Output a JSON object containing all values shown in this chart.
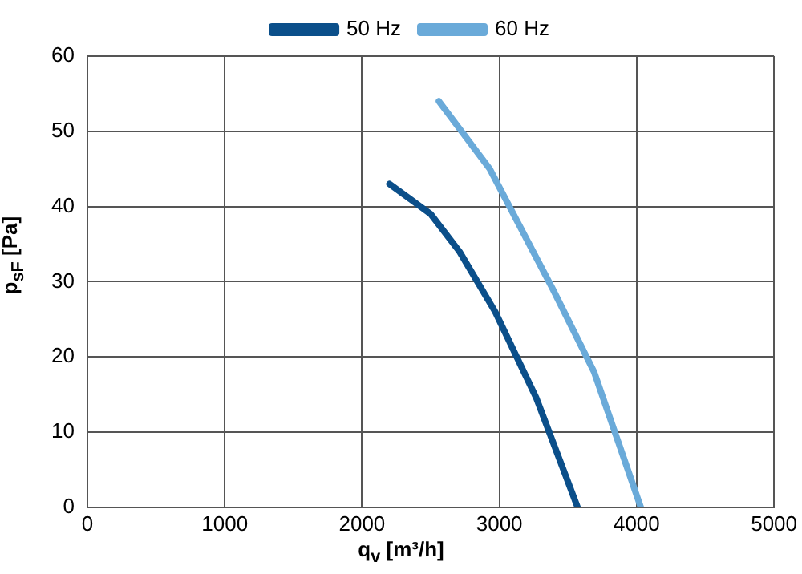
{
  "chart_data": {
    "type": "line",
    "xlabel": "q$_{v}$ [m³/h]",
    "ylabel": "p$_{sF}$ [Pa]",
    "xlim": [
      0,
      5000
    ],
    "xticks": [
      0,
      1000,
      2000,
      3000,
      4000,
      5000
    ],
    "ylim": [
      0,
      60
    ],
    "yticks": [
      0,
      10,
      20,
      30,
      40,
      50,
      60
    ],
    "grid": true,
    "legend": "top",
    "marker": "none",
    "line_style": "solid",
    "series": [
      {
        "name": "50 Hz",
        "color": "#0b4f8a",
        "x": [
          2200,
          2500,
          2710,
          2970,
          3270,
          3570
        ],
        "values": [
          43,
          39,
          34,
          26,
          14.5,
          0
        ]
      },
      {
        "name": "60 Hz",
        "color": "#6aaad9",
        "x": [
          2560,
          2930,
          3390,
          3690,
          4030
        ],
        "values": [
          54,
          45,
          29,
          18,
          0
        ]
      }
    ]
  }
}
